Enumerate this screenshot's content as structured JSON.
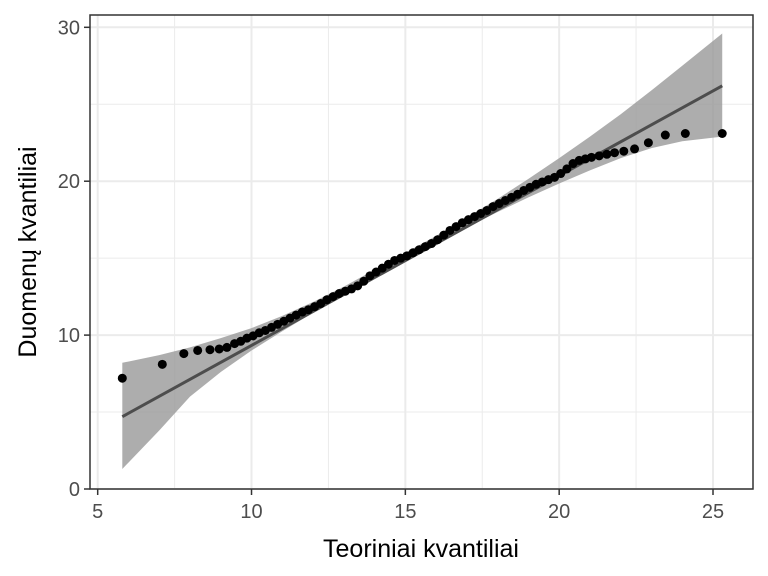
{
  "chart_data": {
    "type": "scatter",
    "title": "",
    "xlabel": "Teoriniai kvantiliai",
    "ylabel": "Duomenų kvantiliai",
    "xlim": [
      4.75,
      26.3
    ],
    "ylim": [
      0,
      30.8
    ],
    "x_ticks": [
      5,
      10,
      15,
      20,
      25
    ],
    "y_ticks": [
      0,
      10,
      20,
      30
    ],
    "grid": true,
    "legend": "none",
    "colors": {
      "points": "#000000",
      "line": "#4d4d4d",
      "band": "#999999",
      "grid": "#ebebeb",
      "panel_border": "#333333",
      "background": "#ffffff"
    },
    "series": [
      {
        "type": "points",
        "x": [
          5.8,
          7.1,
          7.8,
          8.25,
          8.65,
          8.95,
          9.2,
          9.45,
          9.65,
          9.85,
          10.05,
          10.25,
          10.45,
          10.65,
          10.85,
          11.05,
          11.25,
          11.45,
          11.65,
          11.85,
          12.05,
          12.25,
          12.45,
          12.65,
          12.85,
          13.05,
          13.25,
          13.45,
          13.65,
          13.85,
          14.05,
          14.25,
          14.45,
          14.65,
          14.85,
          15.05,
          15.25,
          15.45,
          15.65,
          15.85,
          16.05,
          16.25,
          16.45,
          16.65,
          16.85,
          17.05,
          17.25,
          17.45,
          17.65,
          17.85,
          18.05,
          18.25,
          18.45,
          18.65,
          18.85,
          19.05,
          19.25,
          19.45,
          19.65,
          19.85,
          20.05,
          20.25,
          20.45,
          20.65,
          20.85,
          21.05,
          21.3,
          21.55,
          21.8,
          22.1,
          22.45,
          22.9,
          23.45,
          24.1,
          25.3
        ],
        "y": [
          7.2,
          8.1,
          8.8,
          9.0,
          9.05,
          9.1,
          9.2,
          9.45,
          9.6,
          9.8,
          9.95,
          10.15,
          10.3,
          10.5,
          10.7,
          10.9,
          11.1,
          11.3,
          11.5,
          11.65,
          11.85,
          12.05,
          12.3,
          12.5,
          12.7,
          12.85,
          13.0,
          13.2,
          13.5,
          13.85,
          14.1,
          14.35,
          14.6,
          14.85,
          15.0,
          15.15,
          15.35,
          15.55,
          15.75,
          15.95,
          16.2,
          16.5,
          16.8,
          17.05,
          17.3,
          17.5,
          17.7,
          17.9,
          18.1,
          18.35,
          18.55,
          18.75,
          18.95,
          19.15,
          19.4,
          19.6,
          19.8,
          19.95,
          20.1,
          20.25,
          20.5,
          20.8,
          21.15,
          21.35,
          21.45,
          21.55,
          21.65,
          21.75,
          21.85,
          21.95,
          22.1,
          22.5,
          23.0,
          23.1,
          23.1
        ]
      },
      {
        "type": "line",
        "x": [
          5.8,
          25.3
        ],
        "y": [
          4.7,
          26.2
        ]
      },
      {
        "type": "band",
        "x": [
          5.8,
          7.0,
          8.0,
          9.0,
          10.0,
          11.0,
          12.0,
          13.0,
          14.0,
          15.0,
          16.0,
          17.0,
          18.0,
          19.0,
          20.0,
          21.0,
          22.0,
          23.0,
          24.0,
          25.3
        ],
        "lower": [
          1.3,
          3.8,
          6.0,
          7.6,
          9.0,
          10.25,
          11.45,
          12.6,
          13.75,
          14.85,
          15.95,
          17.0,
          18.0,
          18.95,
          19.85,
          20.7,
          21.5,
          22.15,
          22.6,
          22.9
        ],
        "upper": [
          8.2,
          8.7,
          9.2,
          9.8,
          10.45,
          11.25,
          12.15,
          13.15,
          14.25,
          15.35,
          16.45,
          17.65,
          18.85,
          20.15,
          21.5,
          22.9,
          24.35,
          25.9,
          27.5,
          29.6
        ]
      }
    ]
  }
}
